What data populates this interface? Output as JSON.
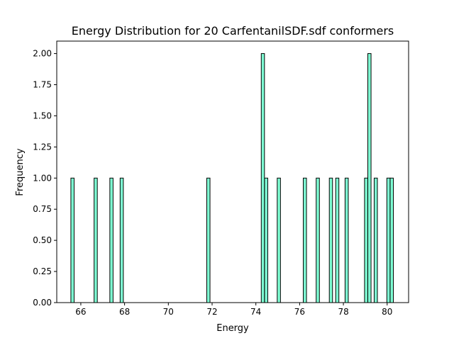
{
  "chart_data": {
    "type": "bar",
    "title": "Energy Distribution for 20 CarfentanilSDF.sdf conformers",
    "xlabel": "Energy",
    "ylabel": "Frequency",
    "xlim": [
      64.9,
      80.98
    ],
    "ylim": [
      0,
      2.1
    ],
    "x_ticks": [
      66,
      68,
      70,
      72,
      74,
      76,
      78,
      80
    ],
    "x_tick_labels": [
      "66",
      "68",
      "70",
      "72",
      "74",
      "76",
      "78",
      "80"
    ],
    "y_ticks": [
      0,
      0.25,
      0.5,
      0.75,
      1.0,
      1.25,
      1.5,
      1.75,
      2.0
    ],
    "y_tick_labels": [
      "0.00",
      "0.25",
      "0.50",
      "0.75",
      "1.00",
      "1.25",
      "1.50",
      "1.75",
      "2.00"
    ],
    "bar_width": 0.147,
    "bar_color": "#7fffd4",
    "edge_color": "#000000",
    "bars": [
      {
        "x": 65.62,
        "value": 1
      },
      {
        "x": 66.68,
        "value": 1
      },
      {
        "x": 67.4,
        "value": 1
      },
      {
        "x": 67.87,
        "value": 1
      },
      {
        "x": 71.83,
        "value": 1
      },
      {
        "x": 74.32,
        "value": 2
      },
      {
        "x": 74.47,
        "value": 1
      },
      {
        "x": 75.05,
        "value": 1
      },
      {
        "x": 76.24,
        "value": 1
      },
      {
        "x": 76.83,
        "value": 1
      },
      {
        "x": 77.43,
        "value": 1
      },
      {
        "x": 77.72,
        "value": 1
      },
      {
        "x": 78.15,
        "value": 1
      },
      {
        "x": 79.04,
        "value": 1
      },
      {
        "x": 79.19,
        "value": 2
      },
      {
        "x": 79.48,
        "value": 1
      },
      {
        "x": 80.06,
        "value": 1
      },
      {
        "x": 80.21,
        "value": 1
      }
    ]
  }
}
